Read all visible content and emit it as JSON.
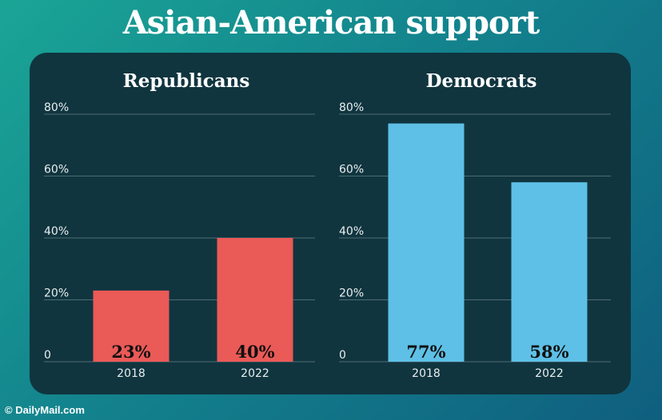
{
  "title": "Asian-American support",
  "credit": "© DailyMail.com",
  "colors": {
    "background_start": "#1aa596",
    "background_end": "#0f5f7f",
    "panel": "#10353f",
    "gridline": "#4f6b72",
    "republicans_bar": "#ea5a57",
    "democrats_bar": "#5ec0e6"
  },
  "chart_data": [
    {
      "type": "bar",
      "title": "Republicans",
      "categories": [
        "2018",
        "2022"
      ],
      "values": [
        23,
        40
      ],
      "value_labels": [
        "23%",
        "40%"
      ],
      "ylim": [
        0,
        80
      ],
      "yticks": [
        0,
        20,
        40,
        60,
        80
      ],
      "ytick_labels": [
        "0",
        "20%",
        "40%",
        "60%",
        "80%"
      ],
      "grid": true,
      "color": "#ea5a57"
    },
    {
      "type": "bar",
      "title": "Democrats",
      "categories": [
        "2018",
        "2022"
      ],
      "values": [
        77,
        58
      ],
      "value_labels": [
        "77%",
        "58%"
      ],
      "ylim": [
        0,
        80
      ],
      "yticks": [
        0,
        20,
        40,
        60,
        80
      ],
      "ytick_labels": [
        "0",
        "20%",
        "40%",
        "60%",
        "80%"
      ],
      "grid": true,
      "color": "#5ec0e6"
    }
  ]
}
